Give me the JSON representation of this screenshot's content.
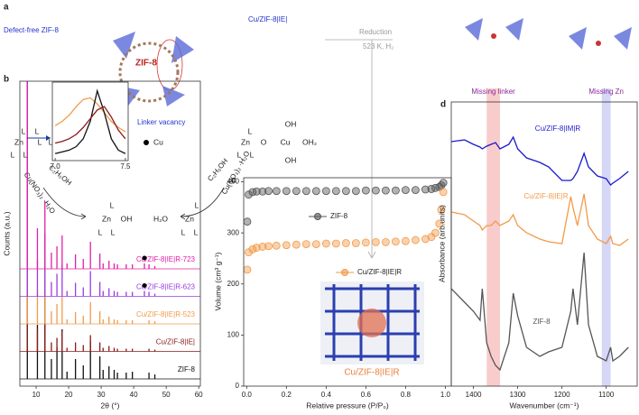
{
  "scheme": {
    "panel": "a",
    "defect_free": "Defect-free ZIF-8",
    "zif8": "ZIF-8",
    "linker_vacancy": "Linker vacancy",
    "cu_ie": "Cu/ZIF-8|IE|",
    "reduction": "Reduction",
    "conditions": "523 K, H₂",
    "solvent": [
      "C₂H₅OH",
      "C₂H₅OH"
    ],
    "salt": [
      "Cu(NO₃)₂ ·H₂O",
      "Cu(NO₃)₂ ·H₂O"
    ],
    "atoms": [
      "L",
      "Zn",
      "L",
      "L",
      "L",
      "L",
      "L",
      "Zn",
      "L",
      "L",
      "L",
      "L",
      "Zn",
      "OH",
      "L",
      "L",
      "H₂O",
      "L",
      "Zn",
      "L",
      "L",
      "L",
      "Zn",
      "O",
      "Cu",
      "OH₂",
      "OH",
      "OH",
      "L",
      "L"
    ]
  },
  "chart_data": [
    {
      "type": "stem",
      "panel": "b",
      "x_label": "2θ (°)",
      "y_label": "Counts (a.u.)",
      "xlim": [
        5,
        60.5
      ],
      "xticks": [
        10,
        20,
        30,
        40,
        50,
        60
      ],
      "x": [
        7.3,
        10.4,
        12.7,
        14.7,
        16.4,
        18.0,
        19.5,
        22.1,
        24.5,
        26.7,
        29.6,
        30.6,
        32.4,
        34.0,
        35.0,
        37.7,
        39.6,
        43.3,
        44.7,
        46.5
      ],
      "legend_marker": "Cu",
      "cu_x": 43.3,
      "series": [
        {
          "name": "ZIF-8",
          "color": "#111111",
          "values": [
            330,
            60,
            110,
            22,
            35,
            55,
            8,
            22,
            15,
            42,
            25,
            10,
            14,
            10,
            7,
            7,
            8,
            0,
            7,
            5
          ]
        },
        {
          "name": "Cu/ZIF-8|IE|",
          "color": "#8b1a1a",
          "values": [
            290,
            25,
            45,
            10,
            15,
            22,
            4,
            10,
            7,
            18,
            10,
            4,
            6,
            4,
            3,
            3,
            3,
            0,
            3,
            2
          ]
        },
        {
          "name": "Cu/ZIF-8|IE|R-523",
          "color": "#f29a4a",
          "values": [
            260,
            35,
            65,
            14,
            22,
            30,
            5,
            13,
            9,
            24,
            14,
            5,
            8,
            5,
            4,
            4,
            4,
            0,
            4,
            3
          ]
        },
        {
          "name": "Cu/ZIF-8|IE|R-623",
          "color": "#9a3ce0",
          "cu_marker": true,
          "values": [
            240,
            40,
            70,
            16,
            25,
            35,
            6,
            15,
            10,
            28,
            16,
            6,
            9,
            6,
            5,
            5,
            5,
            6,
            5,
            3
          ]
        },
        {
          "name": "Cu/ZIF-8|IE|R-723",
          "color": "#e020a8",
          "cu_marker": true,
          "values": [
            210,
            45,
            75,
            18,
            25,
            37,
            6,
            16,
            11,
            30,
            17,
            6,
            9,
            6,
            5,
            5,
            5,
            6,
            5,
            3
          ]
        }
      ],
      "inset": {
        "x": [
          7.0,
          7.05,
          7.1,
          7.15,
          7.2,
          7.25,
          7.3,
          7.35,
          7.4,
          7.45,
          7.5
        ],
        "xlim": [
          6.98,
          7.52
        ],
        "ylim": [
          0,
          90
        ],
        "xticks": [
          {
            "value": 7,
            "label": "7.0"
          },
          {
            "value": 7.5,
            "label": "7.5"
          }
        ],
        "series": [
          {
            "color": "#f29a4a",
            "values": [
              40,
              45,
              52,
              62,
              70,
              72,
              65,
              55,
              45,
              38,
              33
            ]
          },
          {
            "color": "#111111",
            "values": [
              8,
              10,
              12,
              16,
              25,
              45,
              80,
              55,
              25,
              12,
              8
            ]
          },
          {
            "color": "#8b1a1a",
            "values": [
              20,
              22,
              25,
              30,
              38,
              48,
              58,
              62,
              50,
              35,
              25
            ]
          }
        ]
      }
    },
    {
      "type": "scatter",
      "panel": "c",
      "x_label": "Relative pressure (P/P₀)",
      "y_label": "Volume (cm³ g⁻¹)",
      "inset_label": "Cu/ZIF-8|IE|R",
      "xlim": [
        -0.015,
        1.03
      ],
      "xticks": [
        {
          "value": 0,
          "label": "0.0"
        },
        0.2,
        0.4,
        0.6,
        0.8,
        {
          "value": 1,
          "label": "1.0"
        }
      ],
      "ylim": [
        0,
        408
      ],
      "yticks": [
        0,
        100,
        200,
        300,
        400
      ],
      "x": [
        0.003,
        0.01,
        0.03,
        0.05,
        0.08,
        0.11,
        0.15,
        0.2,
        0.25,
        0.3,
        0.35,
        0.4,
        0.45,
        0.5,
        0.55,
        0.6,
        0.65,
        0.7,
        0.75,
        0.8,
        0.85,
        0.9,
        0.93,
        0.95,
        0.97,
        0.98,
        0.99
      ],
      "series": [
        {
          "name": "ZIF-8",
          "color": "#555555",
          "values": [
            322,
            375,
            380,
            381,
            381,
            382,
            382,
            382,
            382,
            382,
            382,
            382,
            382,
            382,
            382,
            383,
            383,
            383,
            383,
            384,
            384,
            385,
            386,
            388,
            390,
            393,
            398
          ]
        },
        {
          "name": "Cu/ZIF-8|IE|R",
          "color": "#f29a4a",
          "values": [
            228,
            262,
            268,
            271,
            273,
            274,
            275,
            276,
            277,
            278,
            278,
            279,
            279,
            280,
            280,
            281,
            282,
            282,
            283,
            284,
            286,
            288,
            292,
            300,
            318,
            345,
            380
          ]
        }
      ]
    },
    {
      "type": "line",
      "panel": "d",
      "x_label": "Wavenumber (cm⁻¹)",
      "y_label": "Absorbance (arb.units)",
      "xlim": [
        1450,
        1030
      ],
      "xticks": [
        1400,
        1300,
        1200,
        1100
      ],
      "bands": [
        {
          "label": "Missing linker",
          "from": 1370,
          "to": 1340,
          "color": "#f7b6b6"
        },
        {
          "label": "Missing Zn",
          "from": 1110,
          "to": 1090,
          "color": "#c4c4f2"
        }
      ],
      "x": [
        1450,
        1420,
        1400,
        1385,
        1380,
        1370,
        1360,
        1350,
        1340,
        1320,
        1310,
        1300,
        1280,
        1250,
        1230,
        1200,
        1180,
        1175,
        1165,
        1150,
        1140,
        1120,
        1100,
        1090,
        1085,
        1070,
        1050
      ],
      "series": [
        {
          "name": "Cu/ZIF-8|IM|R",
          "color": "#1a1acc",
          "values": [
            273,
            275,
            270,
            267,
            265,
            268,
            270,
            272,
            265,
            270,
            278,
            265,
            255,
            250,
            245,
            230,
            230,
            232,
            240,
            260,
            245,
            235,
            232,
            225,
            227,
            232,
            240
          ]
        },
        {
          "name": "Cu/ZIF-8|IE|R",
          "color": "#f29a4a",
          "values": [
            195,
            192,
            185,
            180,
            175,
            180,
            180,
            185,
            180,
            185,
            192,
            180,
            172,
            165,
            162,
            160,
            212,
            200,
            180,
            215,
            180,
            165,
            160,
            168,
            160,
            158,
            165
          ]
        },
        {
          "name": "ZIF-8",
          "color": "#555555",
          "values": [
            110,
            95,
            85,
            75,
            110,
            50,
            35,
            25,
            20,
            50,
            105,
            80,
            45,
            35,
            40,
            45,
            85,
            110,
            70,
            150,
            70,
            35,
            30,
            45,
            30,
            35,
            45
          ]
        }
      ]
    }
  ]
}
